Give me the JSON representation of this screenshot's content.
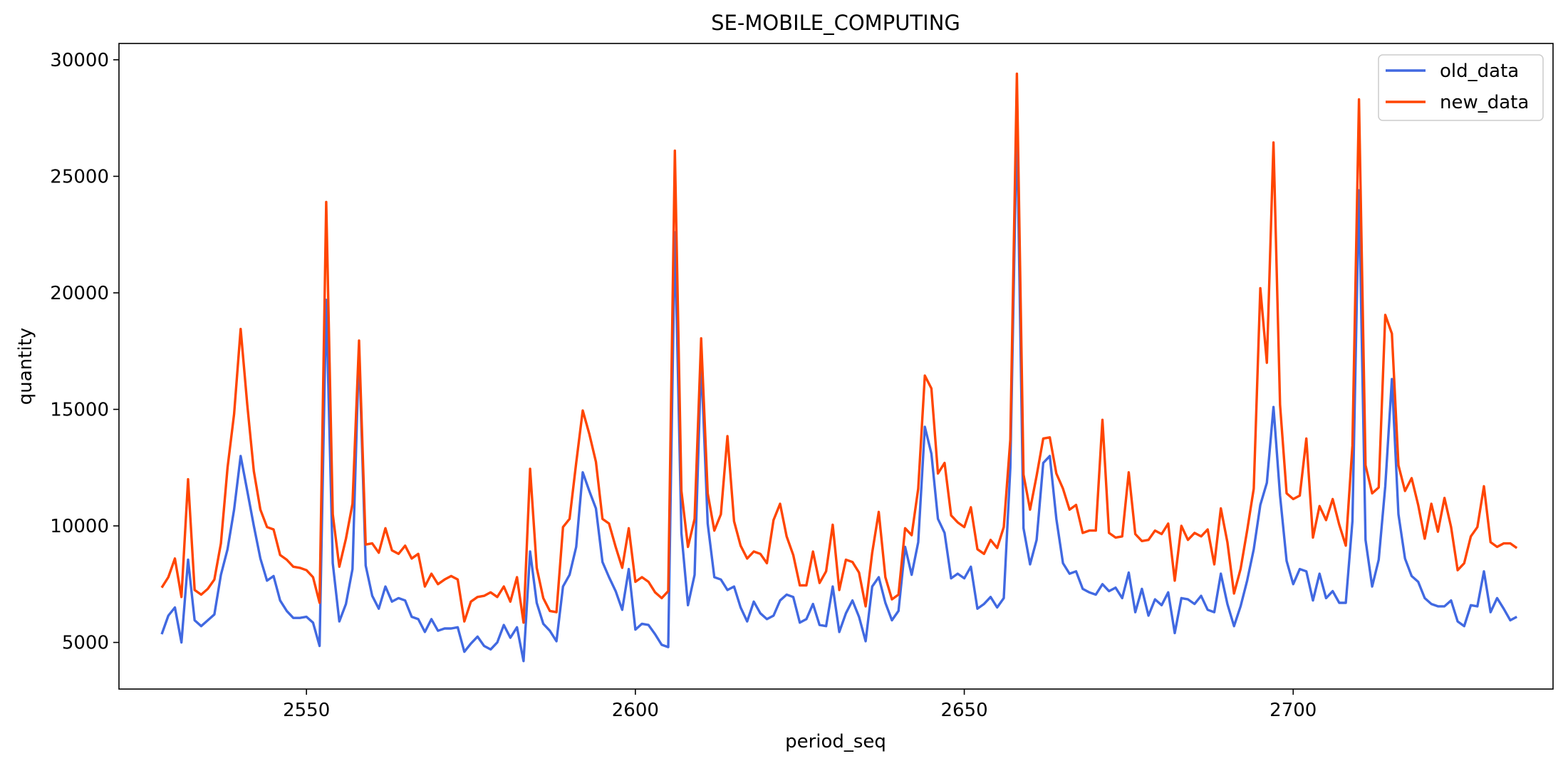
{
  "chart_data": {
    "type": "line",
    "title": "SE-MOBILE_COMPUTING",
    "xlabel": "period_seq",
    "ylabel": "quantity",
    "x_start": 2528,
    "x_step": 1,
    "xlim": [
      2521.5,
      2739.5
    ],
    "ylim": [
      3000,
      30700
    ],
    "xticks": [
      2550,
      2600,
      2650,
      2700
    ],
    "yticks": [
      5000,
      10000,
      15000,
      20000,
      25000,
      30000
    ],
    "grid": false,
    "legend_position": "top-right",
    "series": [
      {
        "name": "old_data",
        "color": "#4169e1",
        "values": [
          5350,
          6150,
          6500,
          5000,
          8550,
          5950,
          5700,
          5950,
          6200,
          7900,
          9000,
          10700,
          13000,
          11500,
          10000,
          8600,
          7650,
          7850,
          6800,
          6350,
          6050,
          6050,
          6100,
          5850,
          4850,
          19700,
          8400,
          5900,
          6650,
          8150,
          17600,
          8300,
          7000,
          6450,
          7400,
          6750,
          6900,
          6800,
          6100,
          6000,
          5450,
          6000,
          5500,
          5600,
          5600,
          5650,
          4600,
          4950,
          5250,
          4850,
          4700,
          5000,
          5750,
          5200,
          5650,
          4200,
          8900,
          6700,
          5800,
          5500,
          5050,
          7400,
          7900,
          9100,
          12300,
          11500,
          10750,
          8450,
          7800,
          7200,
          6400,
          8150,
          5550,
          5800,
          5750,
          5350,
          4900,
          4800,
          22600,
          9700,
          6600,
          7900,
          17100,
          10100,
          7800,
          7700,
          7250,
          7400,
          6500,
          5900,
          6750,
          6250,
          6000,
          6150,
          6800,
          7050,
          6950,
          5850,
          6000,
          6650,
          5750,
          5700,
          7400,
          5450,
          6250,
          6800,
          6100,
          5050,
          7400,
          7800,
          6700,
          5950,
          6350,
          9100,
          7900,
          9300,
          14250,
          13100,
          10300,
          9700,
          7750,
          7950,
          7750,
          8250,
          6450,
          6650,
          6950,
          6500,
          6900,
          12500,
          27400,
          9900,
          8350,
          9400,
          12700,
          13000,
          10300,
          8400,
          7950,
          8050,
          7300,
          7150,
          7050,
          7500,
          7200,
          7350,
          6900,
          8000,
          6300,
          7300,
          6150,
          6850,
          6600,
          7150,
          5400,
          6900,
          6850,
          6650,
          7000,
          6400,
          6300,
          7950,
          6650,
          5700,
          6550,
          7650,
          9000,
          10900,
          11850,
          15100,
          11300,
          8500,
          7500,
          8150,
          8050,
          6800,
          7950,
          6900,
          7200,
          6700,
          6700,
          10200,
          24400,
          9400,
          7400,
          8550,
          11700,
          16300,
          10500,
          8600,
          7850,
          7600,
          6900,
          6650,
          6550,
          6550,
          6800,
          5900,
          5700,
          6600,
          6550,
          8050,
          6300,
          6900,
          6450,
          5950,
          6100
        ]
      },
      {
        "name": "new_data",
        "color": "#ff4500",
        "values": [
          7350,
          7800,
          8600,
          6950,
          12000,
          7250,
          7050,
          7300,
          7700,
          9250,
          12500,
          14800,
          18450,
          15200,
          12350,
          10700,
          9950,
          9850,
          8750,
          8550,
          8250,
          8200,
          8100,
          7800,
          6700,
          23900,
          10500,
          8250,
          9450,
          10950,
          17950,
          9200,
          9250,
          8850,
          9900,
          8950,
          8800,
          9150,
          8600,
          8800,
          7400,
          7950,
          7500,
          7700,
          7850,
          7700,
          5900,
          6750,
          6950,
          7000,
          7150,
          6950,
          7400,
          6750,
          7800,
          5850,
          12450,
          8200,
          6900,
          6350,
          6300,
          9950,
          10300,
          12700,
          14950,
          13950,
          12750,
          10300,
          10100,
          9100,
          8200,
          9900,
          7600,
          7800,
          7600,
          7150,
          6900,
          7200,
          26100,
          11500,
          9100,
          10300,
          18050,
          11400,
          9800,
          10500,
          13850,
          10200,
          9150,
          8600,
          8900,
          8800,
          8400,
          10250,
          10950,
          9550,
          8750,
          7450,
          7450,
          8900,
          7550,
          8050,
          10050,
          7250,
          8550,
          8450,
          8000,
          6550,
          8850,
          10600,
          7800,
          6850,
          7050,
          9900,
          9600,
          11600,
          16450,
          15900,
          12250,
          12700,
          10450,
          10150,
          9950,
          10800,
          9000,
          8800,
          9400,
          9050,
          9950,
          13700,
          29400,
          12200,
          10700,
          12150,
          13750,
          13800,
          12250,
          11600,
          10700,
          10900,
          9700,
          9800,
          9800,
          14550,
          9700,
          9500,
          9550,
          12300,
          9650,
          9350,
          9400,
          9800,
          9650,
          10100,
          7650,
          10000,
          9400,
          9700,
          9550,
          9850,
          8350,
          10750,
          9300,
          7100,
          8150,
          9800,
          11600,
          20200,
          17000,
          26450,
          15200,
          11400,
          11150,
          11300,
          13750,
          9500,
          10850,
          10250,
          11150,
          10050,
          9150,
          13450,
          28300,
          12600,
          11400,
          11650,
          19050,
          18250,
          12600,
          11500,
          12050,
          10900,
          9450,
          10950,
          9750,
          11200,
          9950,
          8100,
          8400,
          9550,
          9950,
          11700,
          9300,
          9100,
          9250,
          9250,
          9050
        ]
      }
    ]
  }
}
